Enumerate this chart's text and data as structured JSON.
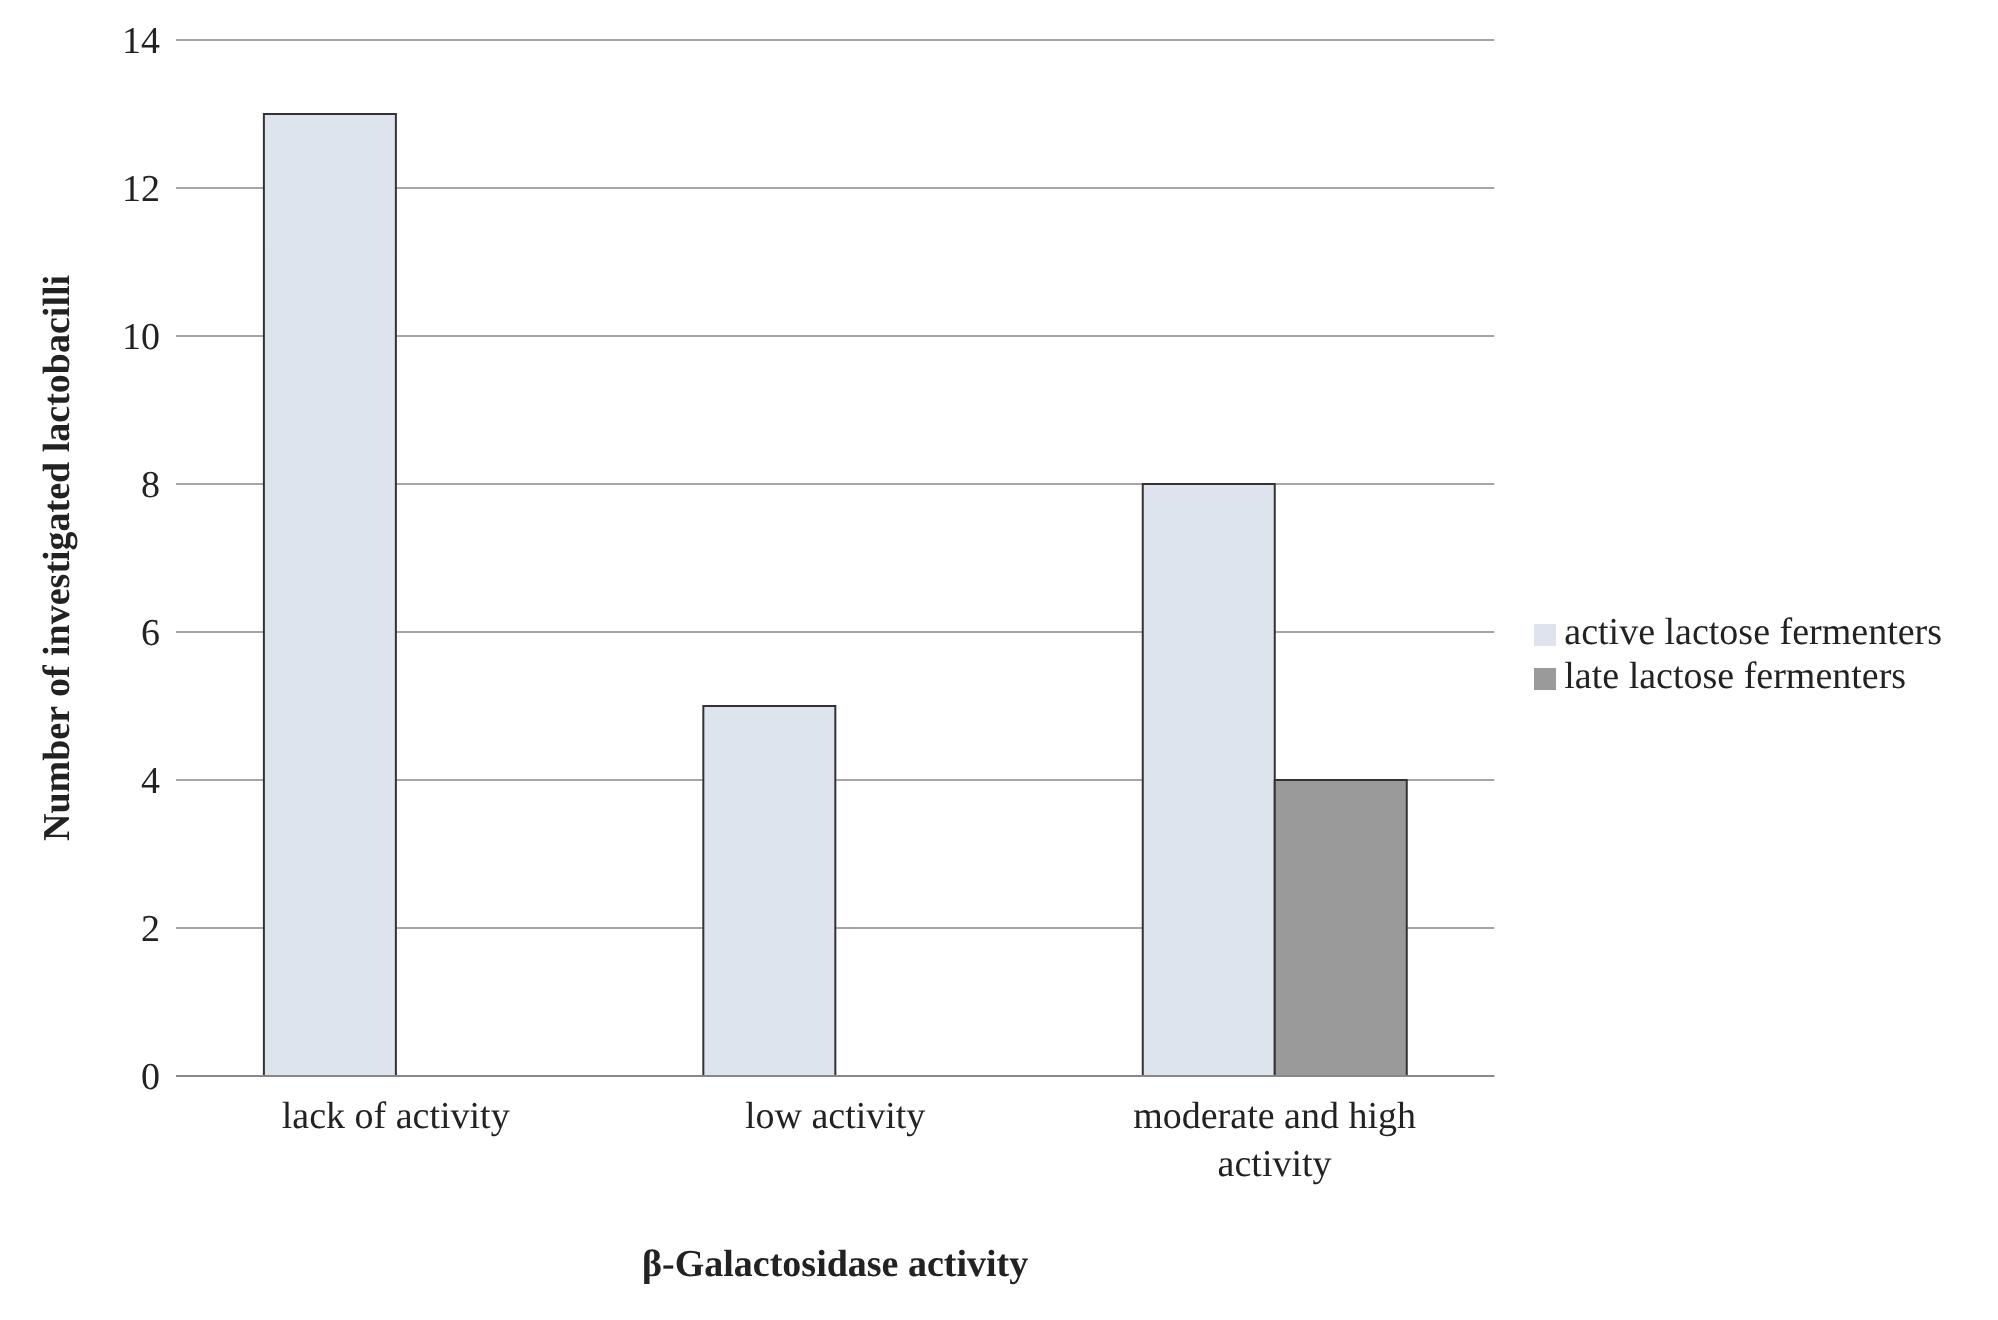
{
  "chart_data": {
    "type": "bar",
    "xlabel": "β-Galactosidase activity",
    "ylabel": "Number of investigated lactobacilli",
    "categories": [
      "lack of activity",
      "low activity",
      "moderate and high activity"
    ],
    "series": [
      {
        "name": "active lactose fermenters",
        "color": "#dde4ee",
        "values": [
          13,
          5,
          8
        ]
      },
      {
        "name": "late lactose fermenters",
        "color": "#9a9a9a",
        "values": [
          null,
          null,
          4
        ]
      }
    ],
    "ylim": [
      0,
      14
    ],
    "yticks": [
      0,
      2,
      4,
      6,
      8,
      10,
      12,
      14
    ],
    "grid": "y",
    "legend": "right"
  }
}
